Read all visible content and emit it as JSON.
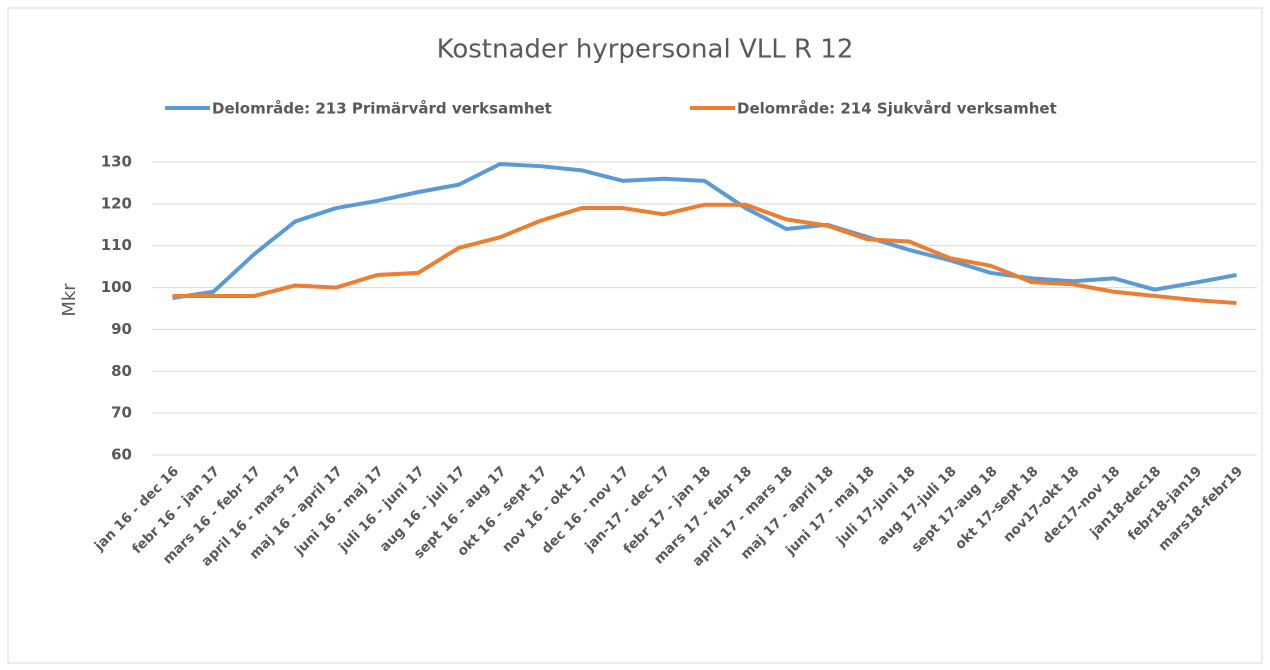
{
  "chart_data": {
    "type": "line",
    "title": "Kostnader hyrpersonal VLL R 12",
    "ylabel": "Mkr",
    "categories": [
      "jan 16 - dec 16",
      "febr 16 - jan 17",
      "mars 16 - febr 17",
      "april 16 - mars 17",
      "maj 16 - april 17",
      "juni 16 - maj 17",
      "juli 16 - juni 17",
      "aug 16 - juli 17",
      "sept 16 - aug 17",
      "okt 16 - sept 17",
      "nov 16 - okt 17",
      "dec 16 - nov 17",
      "jan-17 - dec 17",
      "febr 17 - jan 18",
      "mars 17 - febr 18",
      "april 17 - mars 18",
      "maj 17 - april 18",
      "juni 17 - maj 18",
      "juli 17-juni 18",
      "aug 17-juli 18",
      "sept 17-aug 18",
      "okt 17-sept 18",
      "nov17-okt 18",
      "dec17-nov 18",
      "jan18-dec18",
      "febr18-jan19",
      "mars18-febr19"
    ],
    "series": [
      {
        "name": "Delområde: 213 Primärvård verksamhet",
        "color": "#5b9bd5",
        "values": [
          97.5,
          99,
          108,
          115.8,
          119,
          120.7,
          122.8,
          124.6,
          129.5,
          129,
          128,
          125.5,
          126,
          125.5,
          119,
          114,
          115,
          112,
          109,
          106.5,
          103.5,
          102.2,
          101.5,
          102.2,
          99.5,
          101.2,
          103
        ]
      },
      {
        "name": "Delområde: 214 Sjukvård verksamhet",
        "color": "#ed7d31",
        "values": [
          98,
          98,
          98,
          100.5,
          100,
          103,
          103.5,
          109.5,
          112,
          116,
          119,
          119,
          117.5,
          119.8,
          119.8,
          116.3,
          114.8,
          111.5,
          111,
          107,
          105.2,
          101.3,
          100.8,
          99,
          98,
          97,
          96.3
        ]
      }
    ],
    "ylim": [
      60,
      130
    ],
    "yticks": [
      60,
      70,
      80,
      90,
      100,
      110,
      120,
      130
    ],
    "grid": true,
    "legend": "top"
  }
}
